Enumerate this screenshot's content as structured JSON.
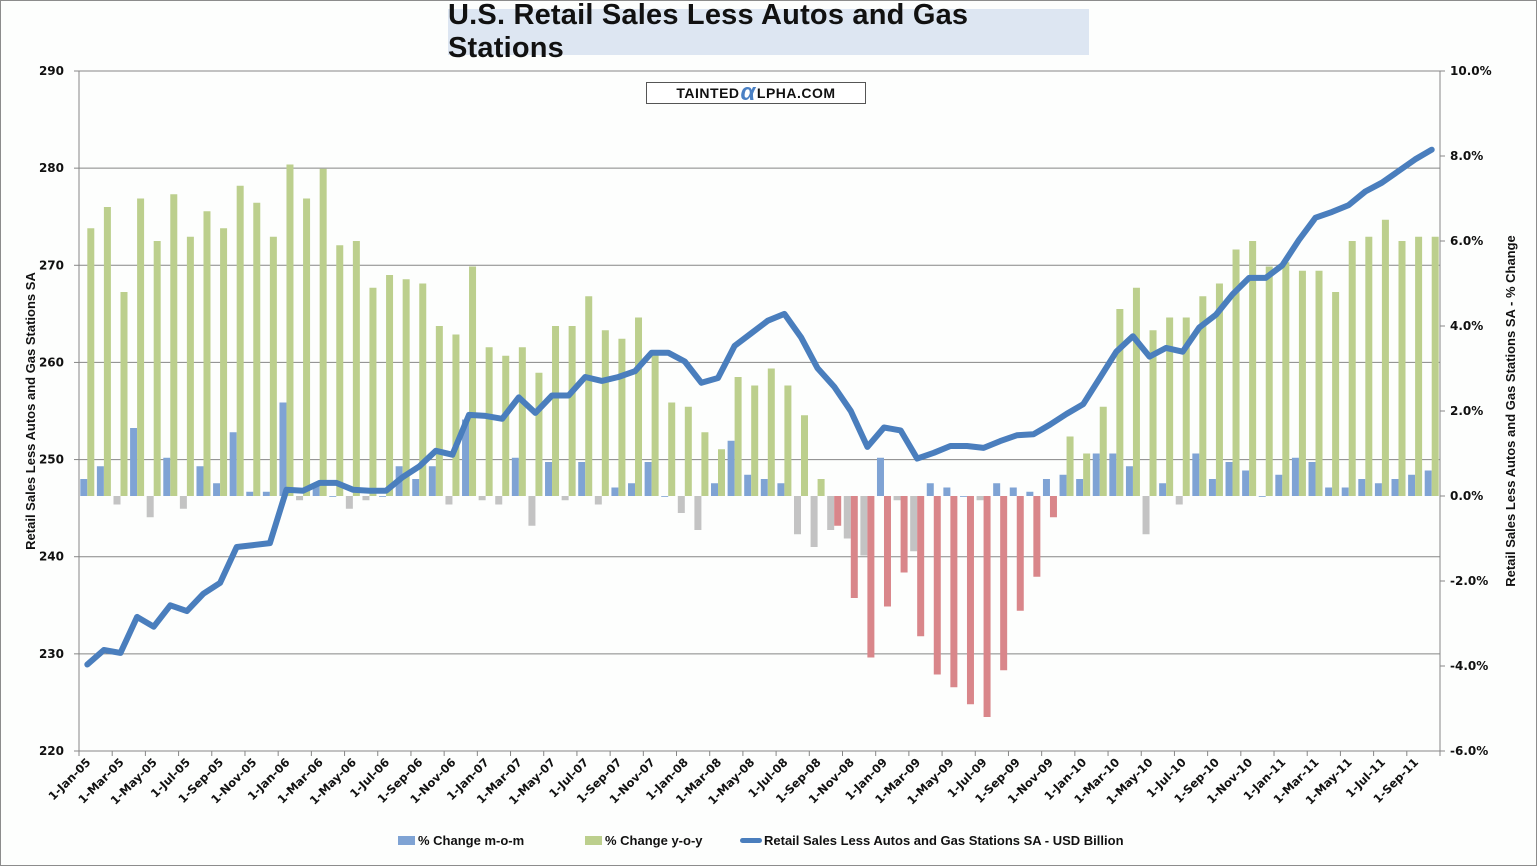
{
  "chart_data": {
    "type": "bar+line",
    "title": "U.S. Retail Sales Less Autos and Gas Stations",
    "watermark": "TAINTEDALPHA.COM",
    "y_left": {
      "label": "Retail Sales Less Autos and Gas Stations SA",
      "range": [
        220,
        290
      ],
      "ticks": [
        "220",
        "230",
        "240",
        "250",
        "260",
        "270",
        "280",
        "290"
      ]
    },
    "y_right": {
      "label": "Retail Sales Less Autos and Gas Stations SA - % Change",
      "range": [
        -6.0,
        10.0
      ],
      "ticks": [
        "-6.0%",
        "-4.0%",
        "-2.0%",
        "0.0%",
        "2.0%",
        "4.0%",
        "6.0%",
        "8.0%",
        "10.0%"
      ]
    },
    "grid": true,
    "legend_position": "bottom",
    "x_tick_labels": [
      "1-Jan-05",
      "1-Mar-05",
      "1-May-05",
      "1-Jul-05",
      "1-Sep-05",
      "1-Nov-05",
      "1-Jan-06",
      "1-Mar-06",
      "1-May-06",
      "1-Jul-06",
      "1-Sep-06",
      "1-Nov-06",
      "1-Jan-07",
      "1-Mar-07",
      "1-May-07",
      "1-Jul-07",
      "1-Sep-07",
      "1-Nov-07",
      "1-Jan-08",
      "1-Mar-08",
      "1-May-08",
      "1-Jul-08",
      "1-Sep-08",
      "1-Nov-08",
      "1-Jan-09",
      "1-Mar-09",
      "1-May-09",
      "1-Jul-09",
      "1-Sep-09",
      "1-Nov-09",
      "1-Jan-10",
      "1-Mar-10",
      "1-May-10",
      "1-Jul-10",
      "1-Sep-10",
      "1-Nov-10",
      "1-Jan-11",
      "1-Mar-11",
      "1-May-11",
      "1-Jul-11",
      "1-Sep-11"
    ],
    "x_months": [
      "Jan-05",
      "Feb-05",
      "Mar-05",
      "Apr-05",
      "May-05",
      "Jun-05",
      "Jul-05",
      "Aug-05",
      "Sep-05",
      "Oct-05",
      "Nov-05",
      "Dec-05",
      "Jan-06",
      "Feb-06",
      "Mar-06",
      "Apr-06",
      "May-06",
      "Jun-06",
      "Jul-06",
      "Aug-06",
      "Sep-06",
      "Oct-06",
      "Nov-06",
      "Dec-06",
      "Jan-07",
      "Feb-07",
      "Mar-07",
      "Apr-07",
      "May-07",
      "Jun-07",
      "Jul-07",
      "Aug-07",
      "Sep-07",
      "Oct-07",
      "Nov-07",
      "Dec-07",
      "Jan-08",
      "Feb-08",
      "Mar-08",
      "Apr-08",
      "May-08",
      "Jun-08",
      "Jul-08",
      "Aug-08",
      "Sep-08",
      "Oct-08",
      "Nov-08",
      "Dec-08",
      "Jan-09",
      "Feb-09",
      "Mar-09",
      "Apr-09",
      "May-09",
      "Jun-09",
      "Jul-09",
      "Aug-09",
      "Sep-09",
      "Oct-09",
      "Nov-09",
      "Dec-09",
      "Jan-10",
      "Feb-10",
      "Mar-10",
      "Apr-10",
      "May-10",
      "Jun-10",
      "Jul-10",
      "Aug-10",
      "Sep-10",
      "Oct-10",
      "Nov-10",
      "Dec-10",
      "Jan-11",
      "Feb-11",
      "Mar-11",
      "Apr-11",
      "May-11",
      "Jun-11",
      "Jul-11",
      "Aug-11",
      "Sep-11",
      "Oct-11"
    ],
    "series": [
      {
        "name": "% Change m-o-m",
        "axis": "right",
        "type": "bar",
        "color": "#7fa3d4",
        "negative_color": "#c3c3c3",
        "values": [
          0.4,
          0.7,
          -0.2,
          1.6,
          -0.5,
          0.9,
          -0.3,
          0.7,
          0.3,
          1.5,
          0.1,
          0.1,
          2.2,
          -0.1,
          0.3,
          0.0,
          -0.3,
          -0.1,
          0.0,
          0.7,
          0.4,
          0.7,
          -0.2,
          1.8,
          -0.1,
          -0.2,
          0.9,
          -0.7,
          0.8,
          -0.1,
          0.8,
          -0.2,
          0.2,
          0.3,
          0.8,
          0.0,
          -0.4,
          -0.8,
          0.3,
          1.3,
          0.5,
          0.4,
          0.3,
          -0.9,
          -1.2,
          -0.8,
          -1.0,
          -1.4,
          0.9,
          -0.1,
          -1.3,
          0.3,
          0.2,
          0.0,
          -0.1,
          0.3,
          0.2,
          0.1,
          0.4,
          0.5,
          0.4,
          1.0,
          1.0,
          0.7,
          -0.9,
          0.3,
          -0.2,
          1.0,
          0.4,
          0.8,
          0.6,
          0.0,
          0.5,
          0.9,
          0.8,
          0.2,
          0.2,
          0.4,
          0.3,
          0.4,
          0.5,
          0.6
        ]
      },
      {
        "name": "% Change y-o-y",
        "axis": "right",
        "type": "bar",
        "color": "#bccf8d",
        "negative_color": "#d9868a",
        "values": [
          6.3,
          6.8,
          4.8,
          7.0,
          6.0,
          7.1,
          6.1,
          6.7,
          6.3,
          7.3,
          6.9,
          6.1,
          7.8,
          7.0,
          7.7,
          5.9,
          6.0,
          4.9,
          5.2,
          5.1,
          5.0,
          4.0,
          3.8,
          5.4,
          3.5,
          3.3,
          3.5,
          2.9,
          4.0,
          4.0,
          4.7,
          3.9,
          3.7,
          4.2,
          3.4,
          2.2,
          2.1,
          1.5,
          1.1,
          2.8,
          2.6,
          3.0,
          2.6,
          1.9,
          0.4,
          -0.7,
          -2.4,
          -3.8,
          -2.6,
          -1.8,
          -3.3,
          -4.2,
          -4.5,
          -4.9,
          -5.2,
          -4.1,
          -2.7,
          -1.9,
          -0.5,
          1.4,
          1.0,
          2.1,
          4.4,
          4.9,
          3.9,
          4.2,
          4.2,
          4.7,
          5.0,
          5.8,
          6.0,
          5.4,
          5.5,
          5.3,
          5.3,
          4.8,
          6.0,
          6.1,
          6.5,
          6.0,
          6.1,
          6.1
        ]
      },
      {
        "name": "Retail Sales Less Autos and Gas Stations SA - USD Billion",
        "axis": "left",
        "type": "line",
        "color": "#4a7ebd",
        "values": [
          228.9,
          230.4,
          230.1,
          233.8,
          232.8,
          235.0,
          234.4,
          236.2,
          237.3,
          241.0,
          241.2,
          241.4,
          246.9,
          246.8,
          247.6,
          247.6,
          246.9,
          246.8,
          246.8,
          248.2,
          249.3,
          250.9,
          250.5,
          254.6,
          254.5,
          254.2,
          256.4,
          254.8,
          256.6,
          256.6,
          258.5,
          258.1,
          258.5,
          259.1,
          261.0,
          261.0,
          260.1,
          257.9,
          258.4,
          261.7,
          263.0,
          264.3,
          265.0,
          262.6,
          259.4,
          257.5,
          255.0,
          251.3,
          253.3,
          253.0,
          250.1,
          250.7,
          251.4,
          251.4,
          251.2,
          251.9,
          252.5,
          252.6,
          253.6,
          254.7,
          255.7,
          258.4,
          261.1,
          262.7,
          260.6,
          261.5,
          261.1,
          263.6,
          264.9,
          267.0,
          268.7,
          268.7,
          270.0,
          272.6,
          274.9,
          275.5,
          276.2,
          277.6,
          278.5,
          279.7,
          280.9,
          281.9
        ]
      }
    ]
  },
  "legend": {
    "mom": "% Change m-o-m",
    "yoy": "% Change y-o-y",
    "level": "Retail Sales Less Autos and Gas Stations SA - USD Billion"
  },
  "watermark": {
    "prefix": "TAINTED",
    "alpha": "α",
    "suffix": "LPHA.COM"
  }
}
